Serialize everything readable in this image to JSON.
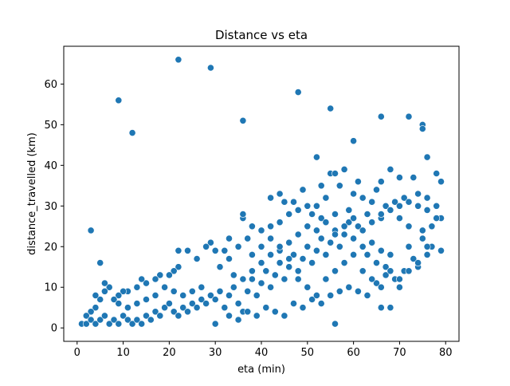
{
  "chart_data": {
    "type": "scatter",
    "title": "Distance vs eta",
    "xlabel": "eta (min)",
    "ylabel": "distance_travelled (km)",
    "xlim": [
      -2.9,
      82.9
    ],
    "ylim": [
      -3.3,
      69.3
    ],
    "xticks": [
      "0",
      "10",
      "20",
      "30",
      "40",
      "50",
      "60",
      "70",
      "80"
    ],
    "yticks": [
      "0",
      "10",
      "20",
      "30",
      "40",
      "50",
      "60"
    ],
    "grid": false,
    "legend": "none",
    "marker_color": "#1f77b4",
    "marker_edge_color": "#ffffff",
    "points": [
      [
        22,
        66
      ],
      [
        29,
        64
      ],
      [
        9,
        56
      ],
      [
        48,
        58
      ],
      [
        12,
        48
      ],
      [
        36,
        51
      ],
      [
        55,
        54
      ],
      [
        66,
        52
      ],
      [
        72,
        52
      ],
      [
        75,
        50
      ],
      [
        75,
        49
      ],
      [
        60,
        46
      ],
      [
        52,
        42
      ],
      [
        76,
        42
      ],
      [
        3,
        24
      ],
      [
        5,
        16
      ],
      [
        58,
        39
      ],
      [
        55,
        38
      ],
      [
        56,
        38
      ],
      [
        68,
        39
      ],
      [
        78,
        38
      ],
      [
        79,
        36
      ],
      [
        73,
        37
      ],
      [
        70,
        37
      ],
      [
        66,
        36
      ],
      [
        65,
        34
      ],
      [
        61,
        36
      ],
      [
        57,
        35
      ],
      [
        53,
        35
      ],
      [
        49,
        34
      ],
      [
        44,
        33
      ],
      [
        42,
        32
      ],
      [
        45,
        31
      ],
      [
        47,
        31
      ],
      [
        50,
        30
      ],
      [
        52,
        30
      ],
      [
        54,
        32
      ],
      [
        60,
        33
      ],
      [
        62,
        32
      ],
      [
        64,
        31
      ],
      [
        67,
        30
      ],
      [
        69,
        31
      ],
      [
        71,
        32
      ],
      [
        74,
        30
      ],
      [
        76,
        29
      ],
      [
        78,
        30
      ],
      [
        79,
        27
      ],
      [
        77,
        25
      ],
      [
        75,
        24
      ],
      [
        72,
        25
      ],
      [
        70,
        27
      ],
      [
        66,
        27
      ],
      [
        63,
        28
      ],
      [
        59,
        29
      ],
      [
        56,
        28
      ],
      [
        53,
        27
      ],
      [
        51,
        28
      ],
      [
        48,
        29
      ],
      [
        46,
        28
      ],
      [
        44,
        26
      ],
      [
        42,
        25
      ],
      [
        40,
        24
      ],
      [
        38,
        25
      ],
      [
        36,
        27
      ],
      [
        36,
        28
      ],
      [
        37,
        22
      ],
      [
        35,
        20
      ],
      [
        33,
        22
      ],
      [
        32,
        19
      ],
      [
        30,
        19
      ],
      [
        29,
        21
      ],
      [
        28,
        20
      ],
      [
        26,
        17
      ],
      [
        24,
        19
      ],
      [
        22,
        19
      ],
      [
        22,
        15
      ],
      [
        21,
        14
      ],
      [
        20,
        13
      ],
      [
        18,
        13
      ],
      [
        17,
        12
      ],
      [
        15,
        11
      ],
      [
        14,
        12
      ],
      [
        13,
        10
      ],
      [
        11,
        9
      ],
      [
        10,
        9
      ],
      [
        9,
        8
      ],
      [
        8,
        7
      ],
      [
        7,
        10
      ],
      [
        6,
        11
      ],
      [
        6,
        9
      ],
      [
        5,
        7
      ],
      [
        4,
        8
      ],
      [
        4,
        5
      ],
      [
        3,
        4
      ],
      [
        2,
        3
      ],
      [
        1,
        1
      ],
      [
        2,
        1
      ],
      [
        3,
        2
      ],
      [
        4,
        1
      ],
      [
        5,
        2
      ],
      [
        6,
        3
      ],
      [
        7,
        1
      ],
      [
        8,
        2
      ],
      [
        9,
        1
      ],
      [
        10,
        3
      ],
      [
        11,
        2
      ],
      [
        12,
        1
      ],
      [
        13,
        2
      ],
      [
        14,
        1
      ],
      [
        15,
        3
      ],
      [
        16,
        2
      ],
      [
        17,
        4
      ],
      [
        18,
        3
      ],
      [
        19,
        5
      ],
      [
        20,
        6
      ],
      [
        21,
        4
      ],
      [
        22,
        3
      ],
      [
        23,
        5
      ],
      [
        24,
        4
      ],
      [
        25,
        6
      ],
      [
        26,
        5
      ],
      [
        27,
        7
      ],
      [
        28,
        6
      ],
      [
        29,
        8
      ],
      [
        30,
        7
      ],
      [
        31,
        9
      ],
      [
        30,
        1
      ],
      [
        32,
        5
      ],
      [
        33,
        8
      ],
      [
        34,
        10
      ],
      [
        35,
        6
      ],
      [
        36,
        4
      ],
      [
        37,
        9
      ],
      [
        38,
        12
      ],
      [
        39,
        8
      ],
      [
        40,
        11
      ],
      [
        41,
        14
      ],
      [
        42,
        10
      ],
      [
        43,
        13
      ],
      [
        44,
        16
      ],
      [
        45,
        12
      ],
      [
        46,
        15
      ],
      [
        47,
        18
      ],
      [
        48,
        14
      ],
      [
        49,
        17
      ],
      [
        50,
        20
      ],
      [
        51,
        16
      ],
      [
        52,
        19
      ],
      [
        53,
        22
      ],
      [
        54,
        18
      ],
      [
        55,
        21
      ],
      [
        56,
        1
      ],
      [
        56,
        24
      ],
      [
        57,
        20
      ],
      [
        58,
        23
      ],
      [
        59,
        26
      ],
      [
        60,
        22
      ],
      [
        61,
        25
      ],
      [
        62,
        20
      ],
      [
        63,
        18
      ],
      [
        64,
        21
      ],
      [
        65,
        16
      ],
      [
        66,
        5
      ],
      [
        66,
        19
      ],
      [
        67,
        15
      ],
      [
        68,
        5
      ],
      [
        68,
        18
      ],
      [
        69,
        12
      ],
      [
        70,
        10
      ],
      [
        71,
        14
      ],
      [
        72,
        20
      ],
      [
        73,
        17
      ],
      [
        74,
        15
      ],
      [
        75,
        22
      ],
      [
        76,
        18
      ],
      [
        77,
        20
      ],
      [
        78,
        27
      ],
      [
        79,
        19
      ],
      [
        33,
        3
      ],
      [
        35,
        2
      ],
      [
        37,
        4
      ],
      [
        39,
        3
      ],
      [
        41,
        5
      ],
      [
        43,
        4
      ],
      [
        45,
        3
      ],
      [
        47,
        6
      ],
      [
        49,
        5
      ],
      [
        51,
        7
      ],
      [
        53,
        6
      ],
      [
        55,
        8
      ],
      [
        57,
        9
      ],
      [
        59,
        10
      ],
      [
        61,
        9
      ],
      [
        63,
        8
      ],
      [
        65,
        11
      ],
      [
        67,
        13
      ],
      [
        70,
        12
      ],
      [
        72,
        14
      ],
      [
        74,
        16
      ],
      [
        76,
        20
      ],
      [
        38,
        18
      ],
      [
        40,
        20
      ],
      [
        42,
        22
      ],
      [
        44,
        19
      ],
      [
        46,
        21
      ],
      [
        48,
        23
      ],
      [
        50,
        25
      ],
      [
        52,
        24
      ],
      [
        54,
        26
      ],
      [
        56,
        23
      ],
      [
        58,
        25
      ],
      [
        60,
        27
      ],
      [
        62,
        24
      ],
      [
        64,
        26
      ],
      [
        66,
        28
      ],
      [
        68,
        29
      ],
      [
        70,
        30
      ],
      [
        72,
        31
      ],
      [
        74,
        33
      ],
      [
        76,
        32
      ],
      [
        31,
        15
      ],
      [
        33,
        17
      ],
      [
        34,
        13
      ],
      [
        36,
        12
      ],
      [
        38,
        14
      ],
      [
        40,
        16
      ],
      [
        42,
        18
      ],
      [
        44,
        20
      ],
      [
        46,
        17
      ],
      [
        48,
        12
      ],
      [
        50,
        10
      ],
      [
        52,
        8
      ],
      [
        54,
        12
      ],
      [
        56,
        14
      ],
      [
        58,
        16
      ],
      [
        60,
        18
      ],
      [
        62,
        14
      ],
      [
        64,
        12
      ],
      [
        66,
        10
      ],
      [
        68,
        14
      ],
      [
        27,
        10
      ],
      [
        25,
        9
      ],
      [
        23,
        8
      ],
      [
        21,
        9
      ],
      [
        19,
        10
      ],
      [
        17,
        8
      ],
      [
        15,
        7
      ],
      [
        13,
        6
      ],
      [
        11,
        5
      ],
      [
        9,
        6
      ]
    ]
  }
}
